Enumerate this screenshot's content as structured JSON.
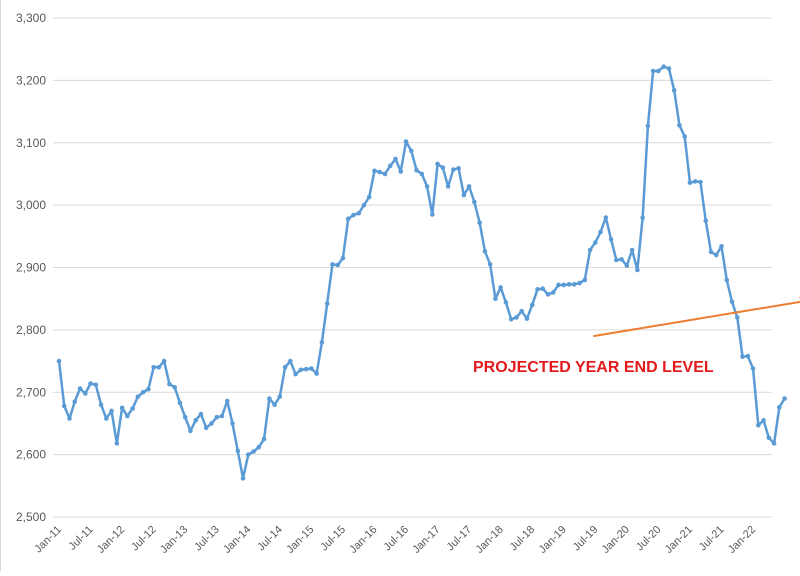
{
  "colors": {
    "series": "#5B9BD5",
    "grid": "#d9d9d9",
    "arrow": "#ED7D31",
    "annotation": "#E3191C",
    "tick": "#595959"
  },
  "chart_data": {
    "type": "line",
    "title": "",
    "xlabel": "",
    "ylabel": "",
    "ylim": [
      2500,
      3300
    ],
    "yticks": [
      2500,
      2600,
      2700,
      2800,
      2900,
      3000,
      3100,
      3200,
      3300
    ],
    "ytick_labels": [
      "2,500",
      "2,600",
      "2,700",
      "2,800",
      "2,900",
      "3,000",
      "3,100",
      "3,200",
      "3,300"
    ],
    "xtick_labels": [
      "Jan-11",
      "Jul-11",
      "Jan-12",
      "Jul-12",
      "Jan-13",
      "Jul-13",
      "Jan-14",
      "Jul-14",
      "Jan-15",
      "Jul-15",
      "Jan-16",
      "Jul-16",
      "Jan-17",
      "Jul-17",
      "Jan-18",
      "Jul-18",
      "Jan-19",
      "Jul-19",
      "Jan-20",
      "Jul-20",
      "Jan-21",
      "Jul-21",
      "Jan-22"
    ],
    "x_start": "Jan-11",
    "x_frequency": "monthly",
    "grid": "horizontal",
    "legend": "none",
    "series": [
      {
        "values": [
          2750,
          2678,
          2658,
          2685,
          2706,
          2698,
          2714,
          2712,
          2680,
          2658,
          2670,
          2618,
          2675,
          2662,
          2674,
          2693,
          2700,
          2705,
          2740,
          2740,
          2750,
          2713,
          2708,
          2683,
          2660,
          2638,
          2655,
          2665,
          2643,
          2650,
          2660,
          2662,
          2686,
          2650,
          2606,
          2562,
          2600,
          2605,
          2612,
          2625,
          2690,
          2680,
          2693,
          2740,
          2750,
          2729,
          2736,
          2737,
          2738,
          2730,
          2780,
          2842,
          2905,
          2904,
          2915,
          2978,
          2984,
          2987,
          3000,
          3013,
          3055,
          3053,
          3050,
          3063,
          3074,
          3054,
          3102,
          3087,
          3056,
          3050,
          3030,
          2985,
          3066,
          3060,
          3030,
          3057,
          3059,
          3016,
          3030,
          3005,
          2972,
          2926,
          2905,
          2850,
          2868,
          2844,
          2817,
          2820,
          2830,
          2818,
          2840,
          2865,
          2866,
          2857,
          2860,
          2872,
          2872,
          2873,
          2873,
          2875,
          2880,
          2928,
          2940,
          2957,
          2980,
          2945,
          2912,
          2913,
          2903,
          2928,
          2896,
          2980,
          3127,
          3215,
          3215,
          3222,
          3219,
          3184,
          3128,
          3110,
          3036,
          3038,
          3037,
          2975,
          2925,
          2920,
          2934,
          2880,
          2845,
          2820,
          2757,
          2758,
          2738,
          2647,
          2655,
          2627,
          2618,
          2676,
          2690
        ]
      }
    ],
    "annotations": [
      {
        "text": "PROJECTED YEAR END LEVEL",
        "arrow_from": {
          "x": "Jul-19",
          "y": 2790
        },
        "arrow_to": {
          "x": "Jan-23",
          "y": 2848
        }
      }
    ]
  }
}
